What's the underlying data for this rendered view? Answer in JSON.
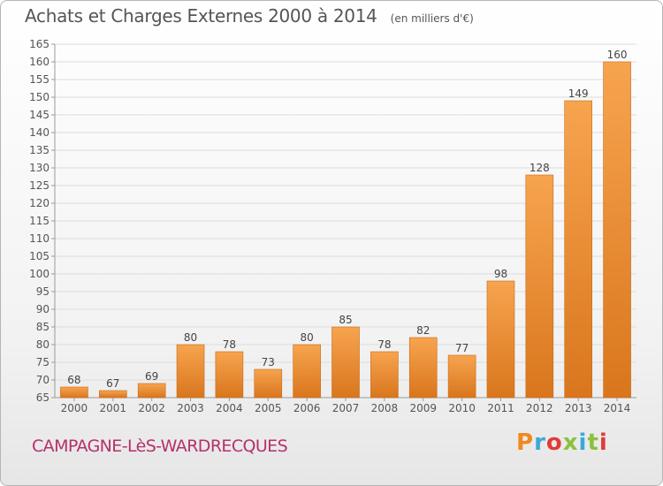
{
  "header": {
    "title": "Achats et Charges Externes 2000 à 2014",
    "unit": "(en milliers d'€)"
  },
  "footer": {
    "place": "CAMPAGNE-LèS-WARDRECQUES",
    "logo": "Proxiti"
  },
  "colors": {
    "bar_light": "#f7a44f",
    "bar_dark": "#d9761d",
    "place_text": "#b5316c",
    "logo_letters": [
      "#f08a1c",
      "#3aa9d8",
      "#e23a3a",
      "#8cc13f",
      "#3aa9d8",
      "#8cc13f",
      "#e23a3a"
    ]
  },
  "chart_data": {
    "type": "bar",
    "categories": [
      "2000",
      "2001",
      "2002",
      "2003",
      "2004",
      "2005",
      "2006",
      "2007",
      "2008",
      "2009",
      "2010",
      "2011",
      "2012",
      "2013",
      "2014"
    ],
    "values": [
      68,
      67,
      69,
      80,
      78,
      73,
      80,
      85,
      78,
      82,
      77,
      98,
      128,
      149,
      160
    ],
    "ylim": [
      65,
      165
    ],
    "yticks": [
      65,
      70,
      75,
      80,
      85,
      90,
      95,
      100,
      105,
      110,
      115,
      120,
      125,
      130,
      135,
      140,
      145,
      150,
      155,
      160,
      165
    ],
    "title": "Achats et Charges Externes 2000 à 2014",
    "xlabel": "",
    "ylabel": "",
    "grid": true,
    "data_labels": true
  }
}
